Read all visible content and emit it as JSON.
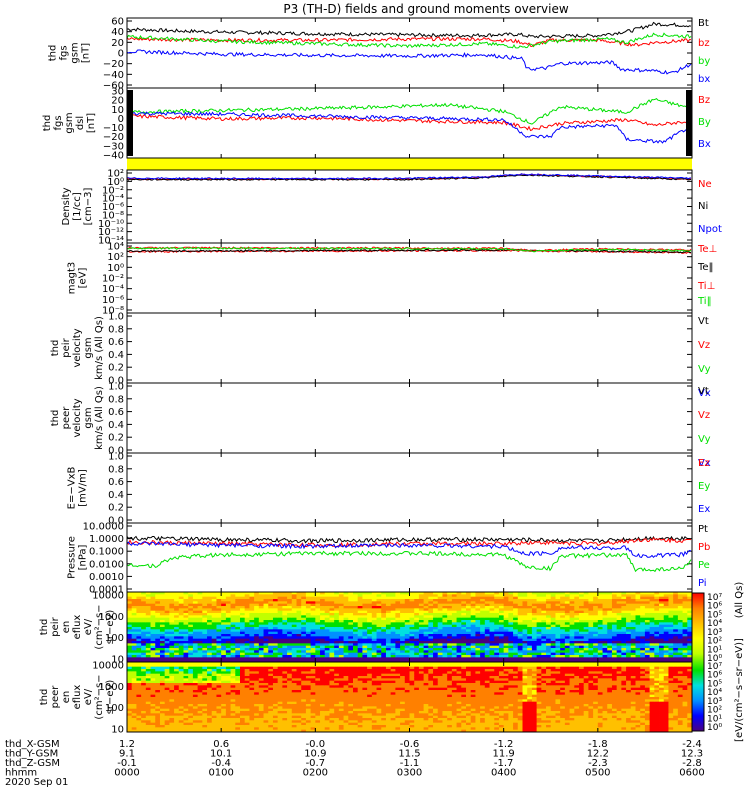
{
  "title": "P3 (TH-D) fields and ground moments overview",
  "colors": {
    "black": "#000000",
    "red": "#ff0000",
    "green": "#00e000",
    "blue": "#0000ff",
    "yellow": "#ffff00"
  },
  "ephemeris": {
    "rows": [
      {
        "label": "thd_X-GSM",
        "values": [
          "1.2",
          "0.6",
          "-0.0",
          "-0.6",
          "-1.2",
          "-1.8",
          "-2.4"
        ]
      },
      {
        "label": "thd_Y-GSM",
        "values": [
          "9.1",
          "10.1",
          "10.9",
          "11.5",
          "11.9",
          "12.2",
          "12.3"
        ]
      },
      {
        "label": "thd_Z-GSM",
        "values": [
          "-0.1",
          "-0.4",
          "-0.7",
          "-1.1",
          "-1.7",
          "-2.3",
          "-2.8"
        ]
      },
      {
        "label": "hhmm",
        "values": [
          "0000",
          "0100",
          "0200",
          "0300",
          "0400",
          "0500",
          "0600"
        ]
      }
    ],
    "date": "2020 Sep 01"
  },
  "chart_data": [
    {
      "type": "line",
      "id": "fgs_gsm",
      "ylabel_lines": [
        "thd",
        "fgs",
        "gsm",
        "[nT]"
      ],
      "yticks": [
        "60",
        "40",
        "20",
        "0",
        "−20",
        "−40",
        "−60"
      ],
      "ylim": [
        -60,
        60
      ],
      "series": [
        {
          "name": "Bt",
          "color": "black",
          "approx": [
            [
              0,
              41
            ],
            [
              0.5,
              38
            ],
            [
              1,
              36
            ],
            [
              2,
              33
            ],
            [
              3,
              31
            ],
            [
              3.6,
              30
            ],
            [
              4.15,
              32
            ],
            [
              4.3,
              28
            ],
            [
              5,
              30
            ],
            [
              5.35,
              38
            ],
            [
              5.6,
              50
            ],
            [
              6,
              47
            ]
          ]
        },
        {
          "name": "bz",
          "color": "red",
          "approx": [
            [
              0,
              24
            ],
            [
              1,
              22
            ],
            [
              2,
              22
            ],
            [
              3,
              24
            ],
            [
              3.8,
              24
            ],
            [
              4.15,
              20
            ],
            [
              4.3,
              13
            ],
            [
              4.5,
              22
            ],
            [
              5,
              22
            ],
            [
              5.4,
              14
            ],
            [
              5.6,
              18
            ],
            [
              6,
              22
            ]
          ]
        },
        {
          "name": "by",
          "color": "green",
          "approx": [
            [
              0,
              28
            ],
            [
              1,
              20
            ],
            [
              2,
              16
            ],
            [
              3,
              12
            ],
            [
              3.8,
              16
            ],
            [
              4.2,
              10
            ],
            [
              4.5,
              20
            ],
            [
              5.1,
              24
            ],
            [
              5.3,
              18
            ],
            [
              5.6,
              32
            ],
            [
              6,
              28
            ]
          ]
        },
        {
          "name": "bx",
          "color": "blue",
          "approx": [
            [
              0,
              3
            ],
            [
              1,
              -2
            ],
            [
              2,
              -4
            ],
            [
              3,
              -5
            ],
            [
              3.8,
              -3
            ],
            [
              4.2,
              -10
            ],
            [
              4.25,
              -28
            ],
            [
              4.45,
              -26
            ],
            [
              4.6,
              -18
            ],
            [
              5.15,
              -16
            ],
            [
              5.25,
              -28
            ],
            [
              5.55,
              -30
            ],
            [
              5.8,
              -34
            ],
            [
              6,
              -18
            ]
          ]
        }
      ]
    },
    {
      "type": "line",
      "id": "fgs_gsm_dsl",
      "ylabel_lines": [
        "thd",
        "fgs",
        "gsm",
        "dsl",
        "[nT]"
      ],
      "yticks": [
        "30",
        "20",
        "10",
        "0",
        "−10",
        "−20",
        "−30",
        "−40"
      ],
      "ylim": [
        -45,
        30
      ],
      "series": [
        {
          "name": "Bz",
          "color": "red",
          "approx": [
            [
              0,
              0
            ],
            [
              1,
              -3
            ],
            [
              2,
              -2
            ],
            [
              3,
              -5
            ],
            [
              4,
              -7
            ],
            [
              4.3,
              -14
            ],
            [
              4.6,
              -8
            ],
            [
              5.3,
              -4
            ],
            [
              5.6,
              -10
            ],
            [
              6,
              -5
            ]
          ]
        },
        {
          "name": "By",
          "color": "green",
          "approx": [
            [
              0,
              4
            ],
            [
              1,
              6
            ],
            [
              2,
              8
            ],
            [
              2.8,
              10
            ],
            [
              3.4,
              12
            ],
            [
              4,
              5
            ],
            [
              4.3,
              -8
            ],
            [
              4.6,
              10
            ],
            [
              5.3,
              4
            ],
            [
              5.6,
              18
            ],
            [
              6,
              8
            ]
          ]
        },
        {
          "name": "Bx",
          "color": "blue",
          "approx": [
            [
              0,
              3
            ],
            [
              1,
              2
            ],
            [
              2,
              0
            ],
            [
              3,
              -2
            ],
            [
              4,
              -4
            ],
            [
              4.25,
              -22
            ],
            [
              4.5,
              -22
            ],
            [
              4.6,
              -12
            ],
            [
              5.2,
              -10
            ],
            [
              5.3,
              -25
            ],
            [
              5.7,
              -28
            ],
            [
              6,
              -10
            ]
          ]
        }
      ]
    },
    {
      "type": "line",
      "id": "density",
      "log": true,
      "ylabel_lines": [
        "Density",
        "[1/cc]",
        "[cm−3]"
      ],
      "yticks": [
        "10²",
        "10⁰",
        "10⁻²",
        "10⁻⁴",
        "10⁻⁶",
        "10⁻⁸",
        "10⁻¹⁰",
        "10⁻¹²",
        "10⁻¹⁴"
      ],
      "ylim": [
        -14,
        2
      ],
      "series": [
        {
          "name": "Ne",
          "color": "red",
          "approx": [
            [
              0,
              0
            ],
            [
              2,
              0
            ],
            [
              3,
              0
            ],
            [
              3.8,
              0.4
            ],
            [
              4.2,
              1
            ],
            [
              5,
              0.6
            ],
            [
              6,
              0
            ]
          ]
        },
        {
          "name": "Ni",
          "color": "black",
          "approx": [
            [
              0,
              -0.1
            ],
            [
              2,
              -0.1
            ],
            [
              3,
              -0.1
            ],
            [
              3.8,
              0.3
            ],
            [
              4.2,
              0.9
            ],
            [
              5,
              0.5
            ],
            [
              6,
              -0.1
            ]
          ]
        },
        {
          "name": "Npot",
          "color": "blue",
          "approx": [
            [
              0,
              0.2
            ],
            [
              2,
              0.1
            ],
            [
              3,
              0.2
            ],
            [
              3.8,
              0.5
            ],
            [
              4.2,
              1.1
            ],
            [
              5,
              0.7
            ],
            [
              6,
              0.2
            ]
          ]
        }
      ]
    },
    {
      "type": "line",
      "id": "temperature",
      "log": true,
      "ylabel_lines": [
        "magt3",
        "[eV]"
      ],
      "yticks": [
        "10⁴",
        "10²",
        "10⁰",
        "10⁻²",
        "10⁻⁴",
        "10⁻⁶",
        "10⁻⁸"
      ],
      "ylim": [
        -9,
        4
      ],
      "series": [
        {
          "name": "Te⊥",
          "color": "red",
          "approx": [
            [
              0,
              2.4
            ],
            [
              2,
              2.5
            ],
            [
              4,
              2.6
            ],
            [
              5,
              2.4
            ],
            [
              6,
              2.2
            ]
          ]
        },
        {
          "name": "Te‖",
          "color": "black",
          "approx": [
            [
              0,
              2.5
            ],
            [
              2,
              2.6
            ],
            [
              4,
              2.7
            ],
            [
              5,
              2.5
            ],
            [
              6,
              2.3
            ]
          ]
        },
        {
          "name": "Ti⊥",
          "color": "red",
          "approx": [
            [
              0,
              3.1
            ],
            [
              2,
              3.1
            ],
            [
              4,
              3.0
            ],
            [
              4.3,
              2.6
            ],
            [
              5,
              2.9
            ],
            [
              6,
              2.7
            ]
          ]
        },
        {
          "name": "Ti‖",
          "color": "green",
          "approx": [
            [
              0,
              3.0
            ],
            [
              2,
              3.0
            ],
            [
              4,
              2.9
            ],
            [
              4.3,
              2.5
            ],
            [
              5,
              2.8
            ],
            [
              6,
              2.6
            ]
          ]
        }
      ]
    },
    {
      "type": "line",
      "id": "peir_velocity",
      "empty": true,
      "ylabel_lines": [
        "thd",
        "peir",
        "velocity",
        "gsm",
        "km/s (All Qs)"
      ],
      "yticks": [
        "1.0",
        "0.8",
        "0.6",
        "0.4",
        "0.2",
        "0.0"
      ],
      "ylim": [
        0,
        1
      ],
      "series": [
        {
          "name": "Vt",
          "color": "black"
        },
        {
          "name": "Vz",
          "color": "red"
        },
        {
          "name": "Vy",
          "color": "green"
        },
        {
          "name": "Vx",
          "color": "blue"
        }
      ]
    },
    {
      "type": "line",
      "id": "peer_velocity",
      "empty": true,
      "ylabel_lines": [
        "thd",
        "peer",
        "velocity",
        "gsm",
        "km/s (All Qs)"
      ],
      "yticks": [
        "1.0",
        "0.8",
        "0.6",
        "0.4",
        "0.2",
        "0.0"
      ],
      "ylim": [
        0,
        1
      ],
      "series": [
        {
          "name": "Vt",
          "color": "black"
        },
        {
          "name": "Vz",
          "color": "red"
        },
        {
          "name": "Vy",
          "color": "green"
        },
        {
          "name": "Vx",
          "color": "blue"
        }
      ]
    },
    {
      "type": "line",
      "id": "efield",
      "empty": true,
      "ylabel_lines": [
        "E=−VxB",
        "[mV/m]"
      ],
      "yticks": [
        "1.0",
        "0.8",
        "0.6",
        "0.4",
        "0.2",
        "0.0"
      ],
      "ylim": [
        0,
        1
      ],
      "series": [
        {
          "name": "Ez",
          "color": "red"
        },
        {
          "name": "Ey",
          "color": "green"
        },
        {
          "name": "Ex",
          "color": "blue"
        }
      ]
    },
    {
      "type": "line",
      "id": "pressure",
      "log": true,
      "ylabel_lines": [
        "Pressure",
        "[nPa]"
      ],
      "yticks": [
        "10.0000",
        "1.0000",
        "0.1000",
        "0.0100",
        "0.0010",
        "0.0001"
      ],
      "ylim": [
        -4,
        1
      ],
      "series": [
        {
          "name": "Pt",
          "color": "black",
          "approx": [
            [
              0,
              -0.1
            ],
            [
              1,
              -0.2
            ],
            [
              2,
              -0.3
            ],
            [
              3,
              -0.2
            ],
            [
              4,
              -0.2
            ],
            [
              5,
              -0.3
            ],
            [
              5.5,
              -0.1
            ],
            [
              6,
              -0.1
            ]
          ]
        },
        {
          "name": "Pb",
          "color": "red",
          "approx": [
            [
              0,
              -0.4
            ],
            [
              1,
              -0.5
            ],
            [
              2,
              -0.6
            ],
            [
              3,
              -0.5
            ],
            [
              4,
              -0.5
            ],
            [
              4.3,
              -0.4
            ],
            [
              5,
              -0.5
            ],
            [
              5.5,
              -0.2
            ],
            [
              6,
              -0.3
            ]
          ]
        },
        {
          "name": "Pe",
          "color": "green",
          "approx": [
            [
              0,
              -2.0
            ],
            [
              0.3,
              -2.1
            ],
            [
              0.5,
              -1.5
            ],
            [
              1,
              -1.3
            ],
            [
              2,
              -1.2
            ],
            [
              3,
              -1.2
            ],
            [
              4,
              -1.3
            ],
            [
              4.25,
              -2.2
            ],
            [
              4.5,
              -2.3
            ],
            [
              4.6,
              -1.4
            ],
            [
              5.3,
              -1.3
            ],
            [
              5.4,
              -2.4
            ],
            [
              5.9,
              -2.3
            ],
            [
              6,
              -1.6
            ]
          ]
        },
        {
          "name": "Pi",
          "color": "blue",
          "approx": [
            [
              0,
              -0.5
            ],
            [
              1,
              -0.6
            ],
            [
              2,
              -0.7
            ],
            [
              3,
              -0.6
            ],
            [
              4,
              -0.7
            ],
            [
              4.2,
              -1.2
            ],
            [
              4.5,
              -1.2
            ],
            [
              4.6,
              -0.8
            ],
            [
              5.3,
              -0.8
            ],
            [
              5.4,
              -1.4
            ],
            [
              5.9,
              -1.3
            ],
            [
              6,
              -0.9
            ]
          ]
        }
      ]
    },
    {
      "type": "heatmap",
      "id": "peir_eflux",
      "ylabel_lines": [
        "thd",
        "peir",
        "en",
        "eflux",
        "eV/",
        "(cm²−s−",
        "sr−eV)"
      ],
      "yticks": [
        "10000",
        "1000",
        "100",
        "10"
      ],
      "ylim_log": [
        0.7,
        4.5
      ]
    },
    {
      "type": "heatmap",
      "id": "peer_eflux",
      "ylabel_lines": [
        "thd",
        "peer",
        "en",
        "eflux",
        "eV/",
        "(cm²−s−",
        "sr−eV)"
      ],
      "yticks": [
        "10000",
        "1000",
        "100",
        "10"
      ],
      "ylim_log": [
        0.7,
        4.3
      ]
    }
  ],
  "colorbar": {
    "ticks": [
      "10⁷",
      "10⁶",
      "10⁵",
      "10⁴",
      "10³",
      "10²",
      "10¹",
      "10⁰"
    ],
    "unit_label": "[eV/(cm²−s−sr−eV)]",
    "upper_label": "(All Qs)"
  }
}
